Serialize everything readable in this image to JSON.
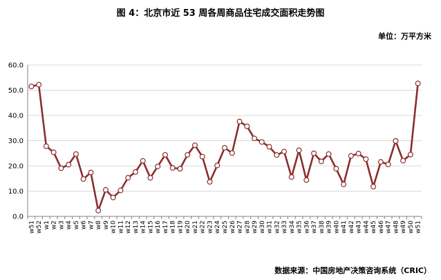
{
  "chart_data": {
    "type": "line",
    "title": "图 4：北京市近 53 周各周商品住宅成交面积走势图",
    "unit": "单位：万平方米",
    "source": "数据来源：中国房地产决策咨询系统（CRIC）",
    "x": [
      "w51",
      "w52",
      "w1",
      "w2",
      "w3",
      "w4",
      "w5",
      "w6",
      "w7",
      "w8",
      "w9",
      "w10",
      "w11",
      "w12",
      "w13",
      "w14",
      "w15",
      "w16",
      "w17",
      "w18",
      "w19",
      "w20",
      "w21",
      "w22",
      "w23",
      "w24",
      "w25",
      "w26",
      "w27",
      "w28",
      "w29",
      "w30",
      "w31",
      "w32",
      "w33",
      "w34",
      "w35",
      "w36",
      "w37",
      "w38",
      "w39",
      "w40",
      "w41",
      "w42",
      "w43",
      "w44",
      "w45",
      "w46",
      "w47",
      "w48",
      "w49",
      "w50",
      "w51"
    ],
    "values": [
      51.5,
      52.2,
      27.8,
      25.4,
      19.1,
      20.5,
      24.7,
      14.8,
      17.4,
      2.3,
      10.5,
      7.5,
      10.3,
      15.3,
      17.6,
      22.0,
      15.3,
      19.8,
      24.4,
      19.2,
      18.9,
      24.4,
      28.2,
      23.7,
      13.7,
      20.2,
      27.2,
      25.1,
      37.6,
      35.7,
      30.9,
      29.5,
      27.6,
      24.3,
      25.7,
      15.6,
      26.2,
      14.4,
      25.0,
      21.8,
      24.7,
      18.9,
      12.7,
      24.0,
      24.9,
      22.7,
      11.8,
      21.6,
      20.6,
      29.9,
      22.1,
      24.5,
      52.7
    ],
    "ylim": [
      0,
      60
    ],
    "yticks": [
      "0.0",
      "10.0",
      "20.0",
      "30.0",
      "40.0",
      "50.0",
      "60.0"
    ],
    "grid": true,
    "legend": "none",
    "line_color": "#8B2C2C",
    "marker_fill": "#ffffff"
  }
}
